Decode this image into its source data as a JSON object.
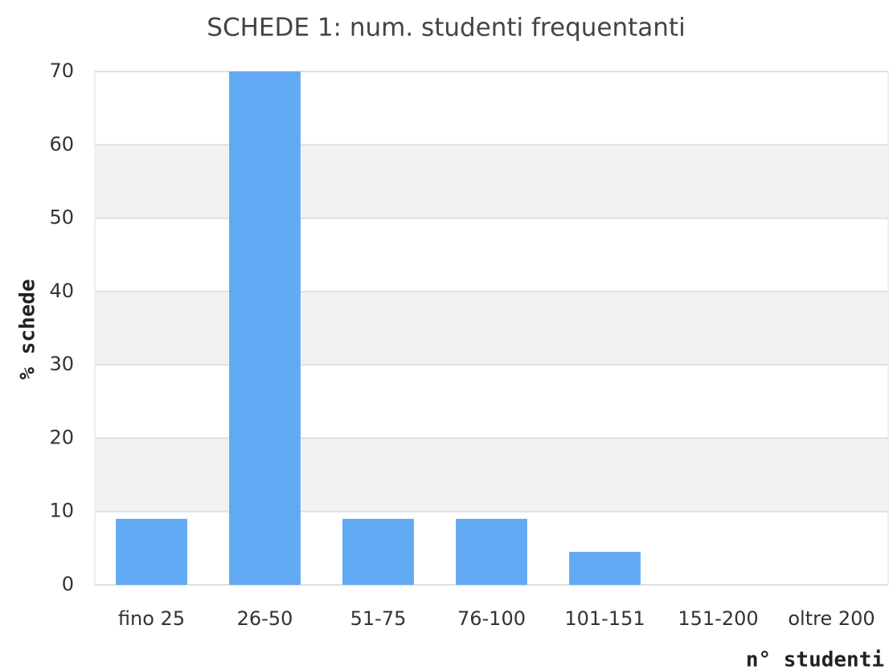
{
  "chart_data": {
    "type": "bar",
    "title": "SCHEDE 1: num. studenti frequentanti",
    "categories": [
      "fino 25",
      "26-50",
      "51-75",
      "76-100",
      "101-151",
      "151-200",
      "oltre 200"
    ],
    "values": [
      9,
      70,
      9,
      9,
      4.5,
      0,
      0
    ],
    "color": "#62a9f3",
    "x_label": "n° studenti",
    "y_label": "% schede",
    "ylim": [
      0,
      70
    ],
    "yticks": [
      0,
      10,
      20,
      30,
      40,
      50,
      60,
      70
    ],
    "grid": true,
    "band_color": "#f2f2f2"
  }
}
